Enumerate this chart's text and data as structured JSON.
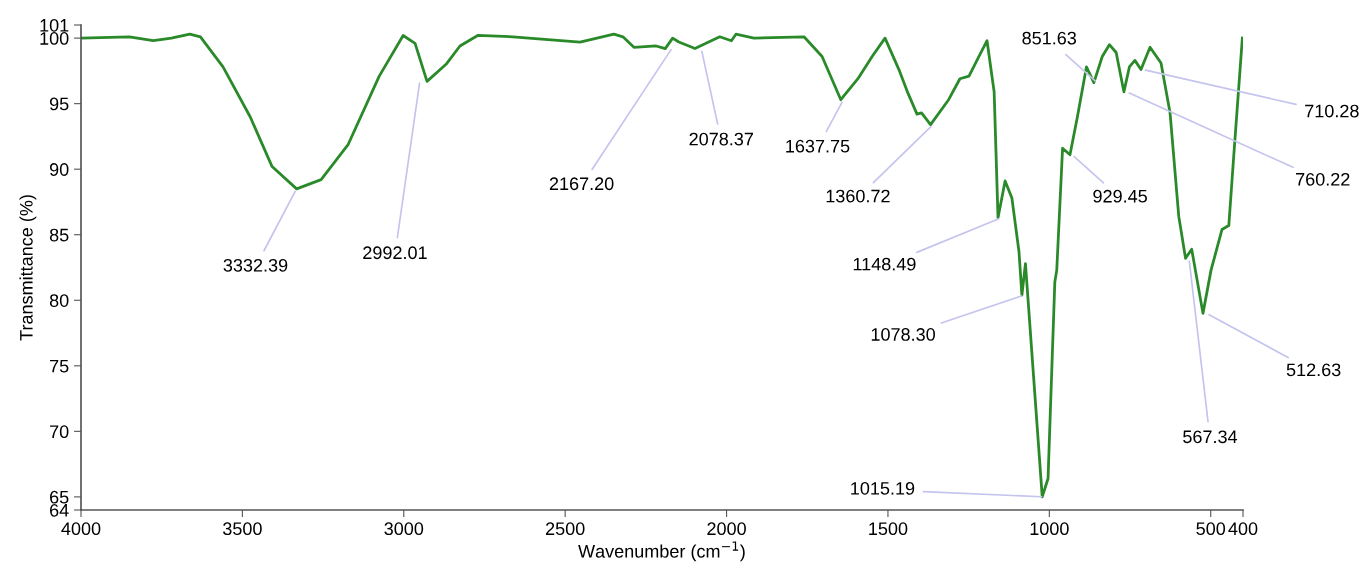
{
  "chart_data": {
    "type": "line",
    "xlabel": "Wavenumber (cm$^{−1}$)",
    "ylabel": "Transmittance (%)",
    "xlim": [
      4000,
      400
    ],
    "xticks": [
      4000,
      3500,
      3000,
      2500,
      2000,
      1500,
      1000,
      500,
      400
    ],
    "ylim": [
      64,
      101
    ],
    "yticks": [
      64,
      65,
      70,
      75,
      80,
      85,
      90,
      95,
      100,
      101
    ],
    "grid": false,
    "legend": false,
    "marker": "none",
    "line_style": "solid",
    "series": [
      {
        "color": "#2a8a2a",
        "x": [
          4000,
          3850,
          3776,
          3720,
          3663,
          3630,
          3560,
          3476,
          3408,
          3332,
          3256,
          3172,
          3076,
          3002,
          2965,
          2928,
          2869,
          2826,
          2771,
          2662,
          2454,
          2349,
          2321,
          2287,
          2218,
          2190,
          2167,
          2148,
          2107,
          2098,
          2021,
          1985,
          1971,
          1915,
          1760,
          1704,
          1646,
          1593,
          1549,
          1509,
          1466,
          1438,
          1410,
          1396,
          1368,
          1312,
          1277,
          1249,
          1214,
          1193,
          1171,
          1159,
          1137,
          1116,
          1094,
          1085,
          1074,
          1022,
          1004,
          983,
          977,
          959,
          936,
          913,
          885,
          862,
          836,
          814,
          793,
          769,
          752,
          735,
          716,
          688,
          654,
          626,
          599,
          578,
          559,
          524,
          499,
          465,
          444,
          429,
          402
        ],
        "values": [
          100.0,
          100.1,
          99.8,
          100.0,
          100.3,
          100.1,
          97.8,
          94.0,
          90.2,
          88.5,
          89.2,
          91.9,
          97.1,
          100.2,
          99.6,
          96.7,
          98.0,
          99.4,
          100.2,
          100.1,
          99.7,
          100.3,
          100.1,
          99.3,
          99.4,
          99.2,
          100.0,
          99.7,
          99.3,
          99.2,
          100.1,
          99.8,
          100.3,
          100.0,
          100.1,
          98.6,
          95.3,
          96.9,
          98.6,
          100.0,
          97.6,
          95.8,
          94.2,
          94.3,
          93.4,
          95.3,
          96.9,
          97.1,
          98.8,
          99.8,
          95.9,
          86.3,
          89.1,
          87.8,
          83.7,
          80.4,
          82.8,
          65.0,
          66.4,
          81.4,
          82.3,
          91.6,
          91.1,
          94.0,
          97.8,
          96.6,
          98.6,
          99.5,
          98.9,
          95.9,
          97.8,
          98.3,
          97.6,
          99.3,
          98.1,
          94.3,
          86.4,
          83.2,
          83.9,
          79.0,
          82.3,
          85.4,
          85.7,
          90.9,
          100.0
        ]
      }
    ],
    "annotations": [
      {
        "text": "3332.39",
        "x": 3332.39,
        "y": 88.5
      },
      "2992.01",
      {
        "text": "2167.20",
        "x": 2167.2,
        "y": 99.3
      },
      {
        "text": "2078.37",
        "x": 2078.37,
        "y": 99.2
      },
      {
        "text": "1637.75",
        "x": 1637.75,
        "y": 95.3
      },
      {
        "text": "1360.72",
        "x": 1360.72,
        "y": 93.4
      },
      {
        "text": "1148.49",
        "x": 1148.49,
        "y": 86.3
      },
      {
        "text": "1078.30",
        "x": 1078.3,
        "y": 80.4
      },
      {
        "text": "1015.19",
        "x": 1015.19,
        "y": 65.0
      },
      {
        "text": "929.45",
        "x": 929.45,
        "y": 91.1
      },
      {
        "text": "851.63",
        "x": 851.63,
        "y": 96.6
      },
      {
        "text": "760.22",
        "x": 760.22,
        "y": 95.9
      },
      {
        "text": "710.28",
        "x": 710.28,
        "y": 97.6
      },
      {
        "text": "567.34",
        "x": 567.34,
        "y": 83.2
      },
      {
        "text": "512.63",
        "x": 512.63,
        "y": 79.0
      }
    ]
  }
}
